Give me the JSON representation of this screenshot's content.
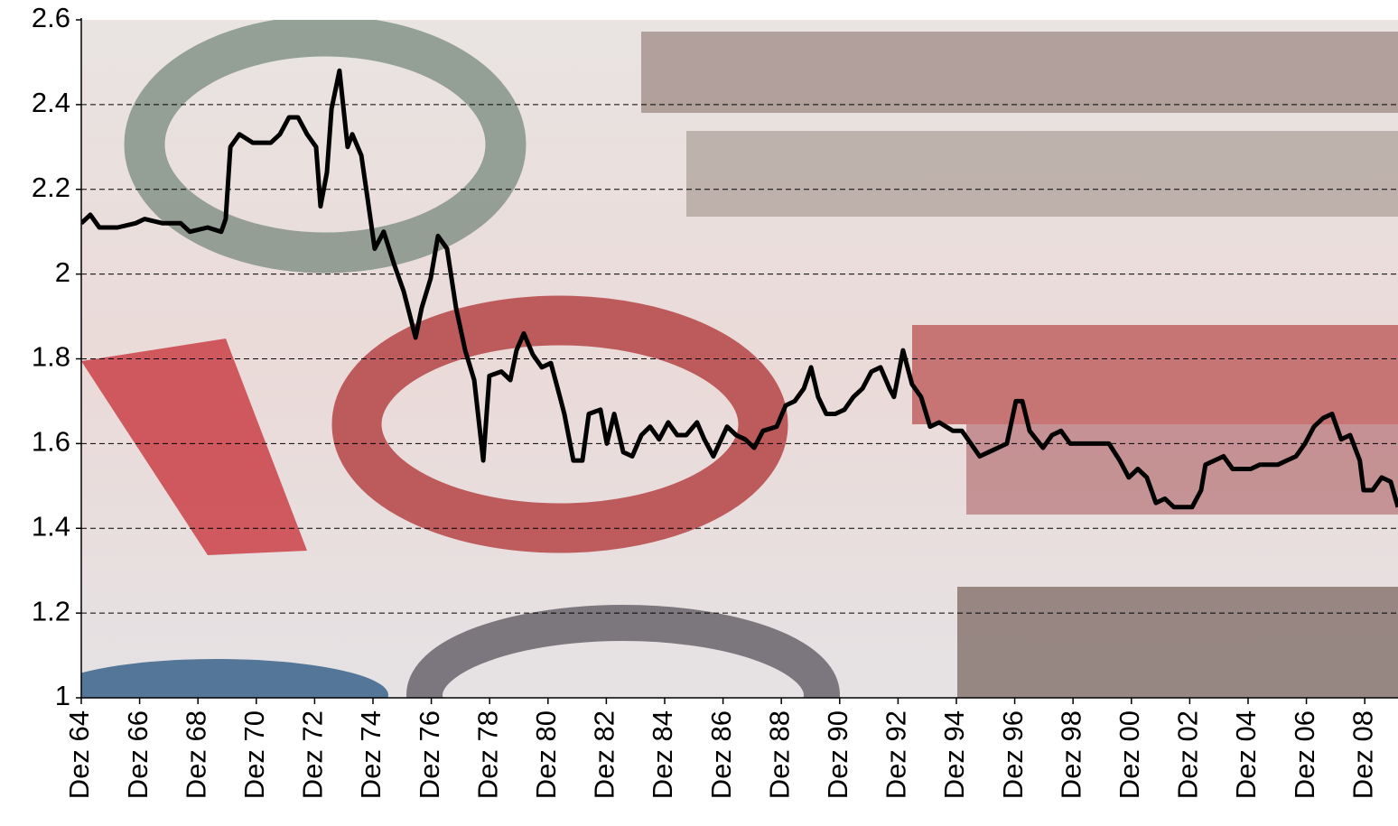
{
  "chart_data": {
    "type": "line",
    "x": [
      1964.0,
      1964.31,
      1964.62,
      1965.24,
      1965.86,
      1966.17,
      1966.79,
      1967.41,
      1967.72,
      1968.33,
      1968.8,
      1968.95,
      1969.11,
      1969.42,
      1969.88,
      1970.5,
      1970.81,
      1971.12,
      1971.43,
      1971.74,
      1972.05,
      1972.2,
      1972.42,
      1972.58,
      1972.85,
      1973.13,
      1973.29,
      1973.6,
      1973.81,
      1974.06,
      1974.37,
      1974.74,
      1975.05,
      1975.46,
      1975.67,
      1975.98,
      1976.23,
      1976.54,
      1976.85,
      1977.16,
      1977.47,
      1977.78,
      1977.99,
      1978.4,
      1978.71,
      1978.92,
      1979.17,
      1979.48,
      1979.79,
      1980.1,
      1980.41,
      1980.56,
      1980.87,
      1981.18,
      1981.4,
      1981.8,
      1982.02,
      1982.27,
      1982.58,
      1982.89,
      1983.2,
      1983.5,
      1983.81,
      1984.12,
      1984.43,
      1984.74,
      1985.11,
      1985.36,
      1985.67,
      1986.14,
      1986.45,
      1986.76,
      1987.07,
      1987.37,
      1987.84,
      1988.15,
      1988.46,
      1988.77,
      1989.02,
      1989.26,
      1989.54,
      1989.85,
      1990.16,
      1990.47,
      1990.78,
      1991.09,
      1991.4,
      1991.71,
      1991.86,
      1992.17,
      1992.48,
      1992.79,
      1993.1,
      1993.41,
      1993.88,
      1994.19,
      1994.5,
      1994.8,
      1995.11,
      1995.42,
      1995.73,
      1996.04,
      1996.26,
      1996.51,
      1996.97,
      1997.28,
      1997.59,
      1997.9,
      1998.37,
      1998.83,
      1999.23,
      1999.6,
      1999.91,
      2000.22,
      2000.53,
      2000.84,
      2001.15,
      2001.46,
      2001.83,
      2002.08,
      2002.39,
      2002.54,
      2002.85,
      2003.16,
      2003.47,
      2003.78,
      2004.09,
      2004.4,
      2004.71,
      2005.02,
      2005.33,
      2005.64,
      2005.95,
      2006.26,
      2006.57,
      2006.88,
      2007.19,
      2007.5,
      2007.83,
      2007.96,
      2008.27,
      2008.58,
      2008.89,
      2009.14
    ],
    "values": [
      2.12,
      2.14,
      2.11,
      2.11,
      2.12,
      2.13,
      2.12,
      2.12,
      2.1,
      2.11,
      2.1,
      2.13,
      2.3,
      2.33,
      2.31,
      2.31,
      2.33,
      2.37,
      2.37,
      2.33,
      2.3,
      2.16,
      2.24,
      2.39,
      2.48,
      2.3,
      2.33,
      2.28,
      2.18,
      2.06,
      2.1,
      2.02,
      1.96,
      1.85,
      1.92,
      1.99,
      2.09,
      2.06,
      1.92,
      1.82,
      1.75,
      1.56,
      1.76,
      1.77,
      1.75,
      1.82,
      1.86,
      1.81,
      1.78,
      1.79,
      1.71,
      1.67,
      1.56,
      1.56,
      1.67,
      1.68,
      1.6,
      1.67,
      1.58,
      1.57,
      1.62,
      1.64,
      1.61,
      1.65,
      1.62,
      1.62,
      1.65,
      1.61,
      1.57,
      1.64,
      1.62,
      1.61,
      1.59,
      1.63,
      1.64,
      1.69,
      1.7,
      1.73,
      1.78,
      1.71,
      1.67,
      1.67,
      1.68,
      1.71,
      1.73,
      1.77,
      1.78,
      1.73,
      1.71,
      1.82,
      1.74,
      1.71,
      1.64,
      1.65,
      1.63,
      1.63,
      1.6,
      1.57,
      1.58,
      1.59,
      1.6,
      1.7,
      1.7,
      1.63,
      1.59,
      1.62,
      1.63,
      1.6,
      1.6,
      1.6,
      1.6,
      1.56,
      1.52,
      1.54,
      1.52,
      1.46,
      1.47,
      1.45,
      1.45,
      1.45,
      1.49,
      1.55,
      1.56,
      1.57,
      1.54,
      1.54,
      1.54,
      1.55,
      1.55,
      1.55,
      1.56,
      1.57,
      1.6,
      1.64,
      1.66,
      1.67,
      1.61,
      1.62,
      1.56,
      1.49,
      1.49,
      1.52,
      1.51,
      1.45
    ],
    "color": "#000000",
    "xlim": [
      1964,
      2009.14
    ],
    "xticks": [
      {
        "value": 1964,
        "label": "Dez 64"
      },
      {
        "value": 1966,
        "label": "Dez 66"
      },
      {
        "value": 1968,
        "label": "Dez 68"
      },
      {
        "value": 1970,
        "label": "Dez 70"
      },
      {
        "value": 1972,
        "label": "Dez 72"
      },
      {
        "value": 1974,
        "label": "Dez 74"
      },
      {
        "value": 1976,
        "label": "Dez 76"
      },
      {
        "value": 1978,
        "label": "Dez 78"
      },
      {
        "value": 1980,
        "label": "Dez 80"
      },
      {
        "value": 1982,
        "label": "Dez 82"
      },
      {
        "value": 1984,
        "label": "Dez 84"
      },
      {
        "value": 1986,
        "label": "Dez 86"
      },
      {
        "value": 1988,
        "label": "Dez 88"
      },
      {
        "value": 1990,
        "label": "Dez 90"
      },
      {
        "value": 1992,
        "label": "Dez 92"
      },
      {
        "value": 1994,
        "label": "Dez 94"
      },
      {
        "value": 1996,
        "label": "Dez 96"
      },
      {
        "value": 1998,
        "label": "Dez 98"
      },
      {
        "value": 2000,
        "label": "Dez 00"
      },
      {
        "value": 2002,
        "label": "Dez 02"
      },
      {
        "value": 2004,
        "label": "Dez 04"
      },
      {
        "value": 2006,
        "label": "Dez 06"
      },
      {
        "value": 2008,
        "label": "Dez 08"
      }
    ],
    "ylim": [
      1,
      2.6
    ],
    "yticks": [
      1,
      1.2,
      1.4,
      1.6,
      1.8,
      2,
      2.2,
      2.4,
      2.6
    ],
    "grid": true
  }
}
